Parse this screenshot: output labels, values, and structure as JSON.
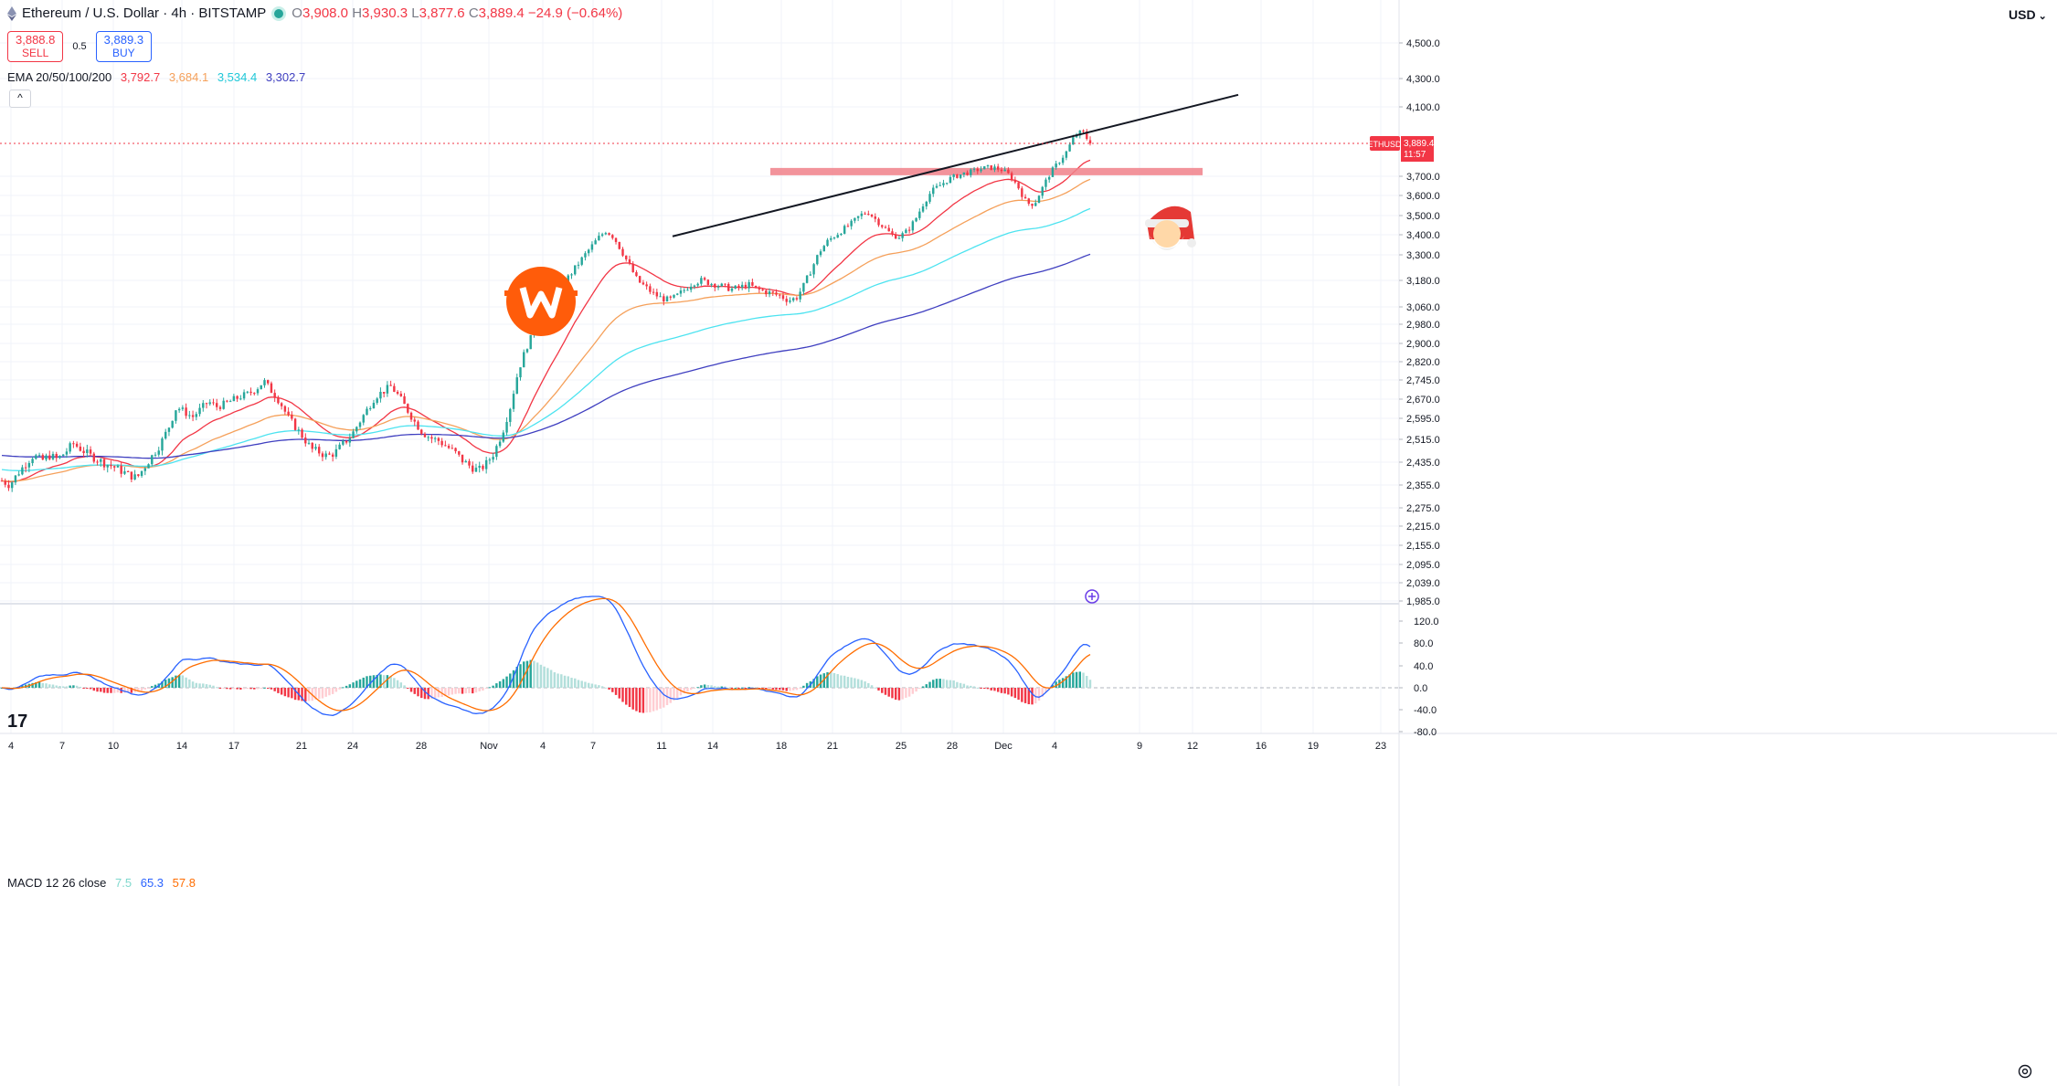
{
  "header": {
    "symbol_title": "Ethereum / U.S. Dollar · 4h · BITSTAMP",
    "open_label": "O",
    "open": "3,908.0",
    "high_label": "H",
    "high": "3,930.3",
    "low_label": "L",
    "low": "3,877.6",
    "close_label": "C",
    "close": "3,889.4",
    "change": "−24.9 (−0.64%)"
  },
  "trade": {
    "sell_price": "3,888.8",
    "sell_label": "SELL",
    "spread": "0.5",
    "buy_price": "3,889.3",
    "buy_label": "BUY"
  },
  "ema_legend": {
    "label": "EMA 20/50/100/200",
    "v20": "3,792.7",
    "v50": "3,684.1",
    "v100": "3,534.4",
    "v200": "3,302.7"
  },
  "collapse_label": "^",
  "macd_legend": {
    "label": "MACD 12 26 close",
    "hist": "7.5",
    "macd": "65.3",
    "signal": "57.8"
  },
  "currency_label": "USD",
  "colors": {
    "up": "#26a69a",
    "down": "#f23645",
    "ema20": "#f23645",
    "ema50": "#f5a05a",
    "ema100": "#4de3f0",
    "ema200": "#3f3fc0",
    "macd": "#2962ff",
    "signal": "#ff6d00",
    "zone": "#f0808a",
    "logo": "#ff5c0a"
  },
  "chart_data": [
    {
      "type": "candlestick",
      "series_name": "ETHUSD",
      "last_price": "3,889.4",
      "countdown": "11:57",
      "ylim": [
        1950,
        4700
      ],
      "price_ticks": [
        "4,500.0",
        "4,300.0",
        "4,100.0",
        "3,700.0",
        "3,600.0",
        "3,500.0",
        "3,400.0",
        "3,300.0",
        "3,180.0",
        "3,060.0",
        "2,980.0",
        "2,900.0",
        "2,820.0",
        "2,745.0",
        "2,670.0",
        "2,595.0",
        "2,515.0",
        "2,435.0",
        "2,355.0",
        "2,275.0",
        "2,215.0",
        "2,155.0",
        "2,095.0",
        "2,039.0",
        "1,985.0"
      ],
      "time_ticks": [
        "4",
        "7",
        "10",
        "14",
        "17",
        "21",
        "24",
        "28",
        "Nov",
        "4",
        "7",
        "11",
        "14",
        "18",
        "21",
        "25",
        "28",
        "Dec",
        "4",
        "9",
        "12",
        "16",
        "19",
        "23"
      ],
      "ema_periods": [
        20,
        50,
        100,
        200
      ],
      "ema_last": [
        3792.7,
        3684.1,
        3534.4,
        3302.7
      ],
      "resistance_zone": [
        3712,
        3748
      ],
      "trendline": [
        [
          3392,
          "Nov 11"
        ],
        [
          4180,
          "Dec 11"
        ]
      ],
      "path": [
        2370,
        2355,
        2395,
        2430,
        2460,
        2440,
        2458,
        2445,
        2470,
        2500,
        2480,
        2460,
        2445,
        2430,
        2420,
        2405,
        2390,
        2380,
        2420,
        2460,
        2500,
        2560,
        2640,
        2620,
        2600,
        2630,
        2660,
        2640,
        2650,
        2665,
        2680,
        2690,
        2710,
        2740,
        2700,
        2660,
        2600,
        2560,
        2520,
        2480,
        2470,
        2455,
        2470,
        2500,
        2530,
        2580,
        2630,
        2680,
        2700,
        2720,
        2680,
        2630,
        2580,
        2540,
        2520,
        2510,
        2490,
        2470,
        2440,
        2420,
        2405,
        2430,
        2470,
        2540,
        2640,
        2780,
        2880,
        2950,
        2990,
        3040,
        3100,
        3180,
        3230,
        3280,
        3330,
        3380,
        3420,
        3390,
        3320,
        3250,
        3180,
        3150,
        3120,
        3100,
        3090,
        3110,
        3140,
        3170,
        3180,
        3170,
        3160,
        3150,
        3140,
        3150,
        3160,
        3140,
        3130,
        3120,
        3110,
        3090,
        3100,
        3160,
        3240,
        3320,
        3370,
        3400,
        3430,
        3460,
        3500,
        3520,
        3480,
        3440,
        3400,
        3390,
        3420,
        3480,
        3560,
        3620,
        3650,
        3680,
        3700,
        3715,
        3725,
        3740,
        3750,
        3748,
        3735,
        3700,
        3640,
        3560,
        3560,
        3640,
        3720,
        3780,
        3840,
        3930,
        3960,
        3889
      ],
      "macd_ylim": [
        -95,
        150
      ],
      "macd_ticks": [
        "120.0",
        "80.0",
        "40.0",
        "0.0",
        "-40.0",
        "-80.0"
      ]
    }
  ]
}
